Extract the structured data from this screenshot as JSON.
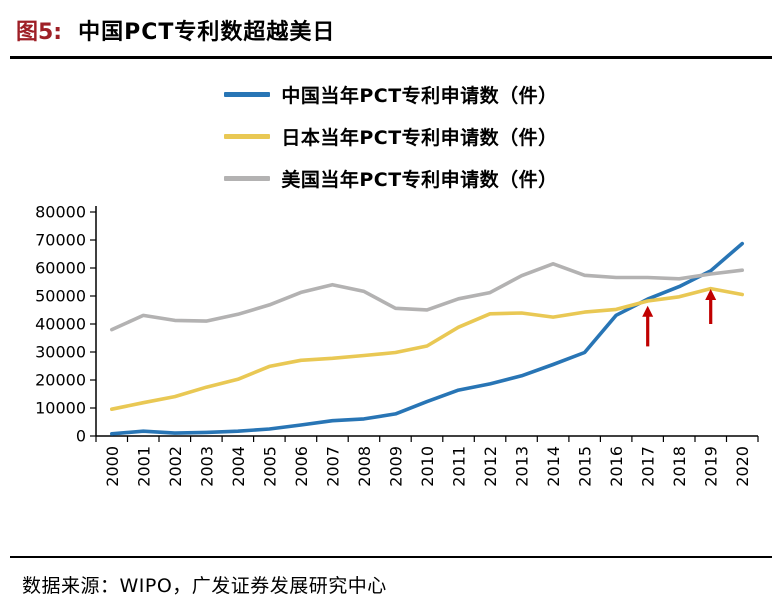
{
  "header": {
    "figure_label": "图5:",
    "title": "中国PCT专利数超越美日",
    "label_color": "#9E1F26"
  },
  "footer": {
    "source": "数据来源：WIPO，广发证券发展研究中心"
  },
  "chart_data": {
    "type": "line",
    "title": "中国PCT专利数超越美日",
    "xlabel": "",
    "ylabel": "",
    "ylim": [
      0,
      80000
    ],
    "ytick": 10000,
    "grid": false,
    "legend_position": "top-center",
    "categories": [
      "2000",
      "2001",
      "2002",
      "2003",
      "2004",
      "2005",
      "2006",
      "2007",
      "2008",
      "2009",
      "2010",
      "2011",
      "2012",
      "2013",
      "2014",
      "2015",
      "2016",
      "2017",
      "2018",
      "2019",
      "2020"
    ],
    "series": [
      {
        "name": "中国当年PCT专利申请数（件）",
        "color": "#2875B5",
        "values": [
          781,
          1731,
          1018,
          1295,
          1706,
          2503,
          3942,
          5455,
          6120,
          7900,
          12296,
          16402,
          18617,
          21516,
          25548,
          29839,
          43091,
          48882,
          53345,
          58990,
          68720
        ]
      },
      {
        "name": "日本当年PCT专利申请数（件）",
        "color": "#E9C854",
        "values": [
          9567,
          11904,
          14063,
          17414,
          20264,
          24869,
          27025,
          27743,
          28760,
          29827,
          32150,
          38874,
          43660,
          43918,
          42459,
          44235,
          45209,
          48208,
          49702,
          52660,
          50520
        ]
      },
      {
        "name": "美国当年PCT专利申请数（件）",
        "color": "#B3B2B2",
        "values": [
          38007,
          43055,
          41296,
          41028,
          43464,
          46829,
          51280,
          54043,
          51637,
          45618,
          45029,
          48996,
          51207,
          57239,
          61492,
          57385,
          56595,
          56624,
          56142,
          57840,
          59230
        ]
      }
    ],
    "annotations": [
      {
        "type": "arrow-up",
        "x": "2017",
        "tail_value": 32000,
        "tip_value": 46500,
        "color": "#C00000"
      },
      {
        "type": "arrow-up",
        "x": "2019",
        "tail_value": 40000,
        "tip_value": 52500,
        "color": "#C00000"
      }
    ]
  }
}
